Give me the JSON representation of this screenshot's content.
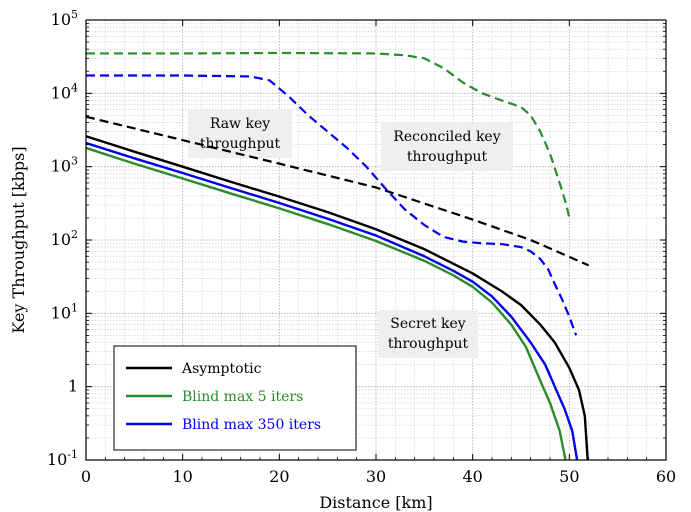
{
  "chart_data": {
    "type": "line",
    "xlabel": "Distance [km]",
    "ylabel": "Key Throughput [kbps]",
    "xlim": [
      0,
      60
    ],
    "ylim": [
      0.1,
      100000
    ],
    "yscale": "log",
    "grid": true,
    "x_ticks": [
      0,
      10,
      20,
      30,
      40,
      50,
      60
    ],
    "x_tick_labels": [
      "0",
      "10",
      "20",
      "30",
      "40",
      "50",
      "60"
    ],
    "y_ticks": [
      {
        "value": 0.1,
        "base": "10",
        "exp": "-1"
      },
      {
        "value": 1,
        "base": "1",
        "exp": ""
      },
      {
        "value": 10,
        "base": "10",
        "exp": "1"
      },
      {
        "value": 100,
        "base": "10",
        "exp": "2"
      },
      {
        "value": 1000,
        "base": "10",
        "exp": "3"
      },
      {
        "value": 10000,
        "base": "10",
        "exp": "4"
      },
      {
        "value": 100000,
        "base": "10",
        "exp": "5"
      }
    ],
    "legend": {
      "placement": "bottom-left",
      "entries": [
        "Asymptotic",
        "Blind max 5 iters",
        "Blind max 350 iters"
      ]
    },
    "annotations": [
      {
        "lines": [
          "Raw key",
          "throughput"
        ]
      },
      {
        "lines": [
          "Reconciled key",
          "throughput"
        ]
      },
      {
        "lines": [
          "Secret key",
          "throughput"
        ]
      }
    ],
    "series": [
      {
        "name": "Asymptotic",
        "key_type": "secret",
        "color": "#000000",
        "dashed": false,
        "points": [
          [
            0,
            2600
          ],
          [
            5,
            1600
          ],
          [
            10,
            1000
          ],
          [
            15,
            620
          ],
          [
            20,
            390
          ],
          [
            25,
            240
          ],
          [
            30,
            140
          ],
          [
            35,
            75
          ],
          [
            40,
            35
          ],
          [
            43,
            20
          ],
          [
            45,
            13
          ],
          [
            47,
            7
          ],
          [
            48.5,
            4
          ],
          [
            50,
            1.8
          ],
          [
            51,
            0.9
          ],
          [
            51.6,
            0.4
          ],
          [
            51.9,
            0.1
          ]
        ]
      },
      {
        "name": "Blind max 5 iters",
        "key_type": "secret",
        "color": "#2a8c2a",
        "dashed": false,
        "points": [
          [
            0,
            1800
          ],
          [
            5,
            1100
          ],
          [
            10,
            690
          ],
          [
            15,
            430
          ],
          [
            20,
            270
          ],
          [
            25,
            165
          ],
          [
            30,
            97
          ],
          [
            35,
            52
          ],
          [
            38,
            33
          ],
          [
            40,
            23
          ],
          [
            42,
            14
          ],
          [
            44,
            7
          ],
          [
            45.5,
            3.5
          ],
          [
            47,
            1.2
          ],
          [
            48,
            0.6
          ],
          [
            49,
            0.25
          ],
          [
            49.6,
            0.1
          ]
        ]
      },
      {
        "name": "Blind max 350 iters",
        "key_type": "secret",
        "color": "#0000ee",
        "dashed": false,
        "points": [
          [
            0,
            2100
          ],
          [
            5,
            1300
          ],
          [
            10,
            820
          ],
          [
            15,
            510
          ],
          [
            20,
            320
          ],
          [
            25,
            195
          ],
          [
            30,
            115
          ],
          [
            35,
            60
          ],
          [
            38,
            38
          ],
          [
            40,
            27
          ],
          [
            42,
            17
          ],
          [
            44,
            9
          ],
          [
            46,
            4
          ],
          [
            47.5,
            2
          ],
          [
            48.5,
            1
          ],
          [
            49.5,
            0.5
          ],
          [
            50.3,
            0.25
          ],
          [
            50.8,
            0.1
          ]
        ]
      },
      {
        "name": "",
        "key_type": "raw",
        "color": "#000000",
        "dashed": true,
        "points": [
          [
            0,
            4800
          ],
          [
            10,
            2300
          ],
          [
            20,
            1100
          ],
          [
            30,
            520
          ],
          [
            40,
            190
          ],
          [
            46,
            100
          ],
          [
            52,
            45
          ]
        ]
      },
      {
        "name": "",
        "key_type": "reconciled",
        "color": "#2a8c2a",
        "dashed": true,
        "points": [
          [
            0,
            35000
          ],
          [
            10,
            35000
          ],
          [
            20,
            35500
          ],
          [
            30,
            35000
          ],
          [
            33,
            33000
          ],
          [
            35,
            30000
          ],
          [
            37,
            22000
          ],
          [
            39,
            14000
          ],
          [
            41,
            10000
          ],
          [
            43,
            8000
          ],
          [
            45,
            6500
          ],
          [
            46,
            5000
          ],
          [
            47,
            3000
          ],
          [
            48,
            1500
          ],
          [
            49,
            600
          ],
          [
            49.7,
            300
          ],
          [
            50,
            200
          ]
        ]
      },
      {
        "name": "",
        "key_type": "reconciled",
        "color": "#0000ee",
        "dashed": true,
        "points": [
          [
            0,
            17500
          ],
          [
            10,
            17500
          ],
          [
            17,
            17000
          ],
          [
            19,
            15000
          ],
          [
            21,
            9000
          ],
          [
            23,
            5000
          ],
          [
            25,
            3000
          ],
          [
            27,
            1800
          ],
          [
            29,
            1000
          ],
          [
            31,
            500
          ],
          [
            33,
            260
          ],
          [
            35,
            160
          ],
          [
            37,
            110
          ],
          [
            39,
            95
          ],
          [
            41,
            90
          ],
          [
            43,
            88
          ],
          [
            45,
            80
          ],
          [
            46,
            70
          ],
          [
            47,
            55
          ],
          [
            47.8,
            40
          ],
          [
            48.5,
            25
          ],
          [
            49.3,
            15
          ],
          [
            50,
            9
          ],
          [
            50.7,
            5
          ]
        ]
      }
    ]
  }
}
